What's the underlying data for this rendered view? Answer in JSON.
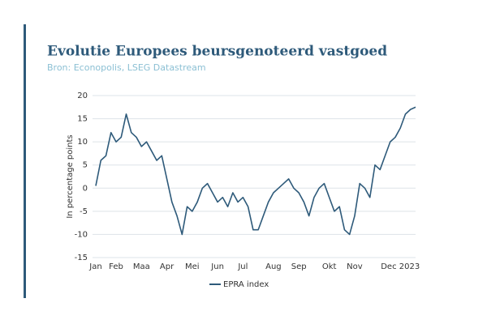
{
  "chart_data": {
    "type": "line",
    "title": "Evolutie Europees beursgenoteerd vastgoed",
    "subtitle": "Bron: Econopolis, LSEG Datastream",
    "y_label": "In percentage points",
    "categories": [
      "Jan",
      null,
      null,
      null,
      "Feb",
      null,
      null,
      null,
      null,
      "Maa",
      null,
      null,
      null,
      null,
      "Apr",
      null,
      null,
      null,
      null,
      "Mei",
      null,
      null,
      null,
      null,
      "Jun",
      null,
      null,
      null,
      null,
      "Jul",
      null,
      null,
      null,
      null,
      null,
      "Aug",
      null,
      null,
      null,
      null,
      "Sep",
      null,
      null,
      null,
      null,
      null,
      "Okt",
      null,
      null,
      null,
      null,
      "Nov",
      null,
      null,
      null,
      null,
      null,
      null,
      null,
      null,
      "Dec 2023",
      null,
      null,
      null
    ],
    "series": [
      {
        "name": "EPRA index",
        "color": "#2e5a7a",
        "values": [
          0.5,
          6,
          7,
          12,
          10,
          11,
          16,
          12,
          11,
          9,
          10,
          8,
          6,
          7,
          2,
          -3,
          -6,
          -10,
          -4,
          -5,
          -3,
          0,
          1,
          -1,
          -3,
          -2,
          -4,
          -1,
          -3,
          -2,
          -4,
          -9,
          -9,
          -6,
          -3,
          -1,
          0,
          1,
          2,
          0,
          -1,
          -3,
          -6,
          -2,
          0,
          1,
          -2,
          -5,
          -4,
          -9,
          -10,
          -6,
          1,
          0,
          -2,
          5,
          4,
          7,
          10,
          11,
          13,
          16,
          17,
          17.5
        ]
      }
    ],
    "ylim": [
      -15,
      20
    ],
    "yticks": [
      -15,
      -10,
      -5,
      0,
      5,
      10,
      15,
      20
    ],
    "grid": true,
    "legend": "bottom"
  }
}
